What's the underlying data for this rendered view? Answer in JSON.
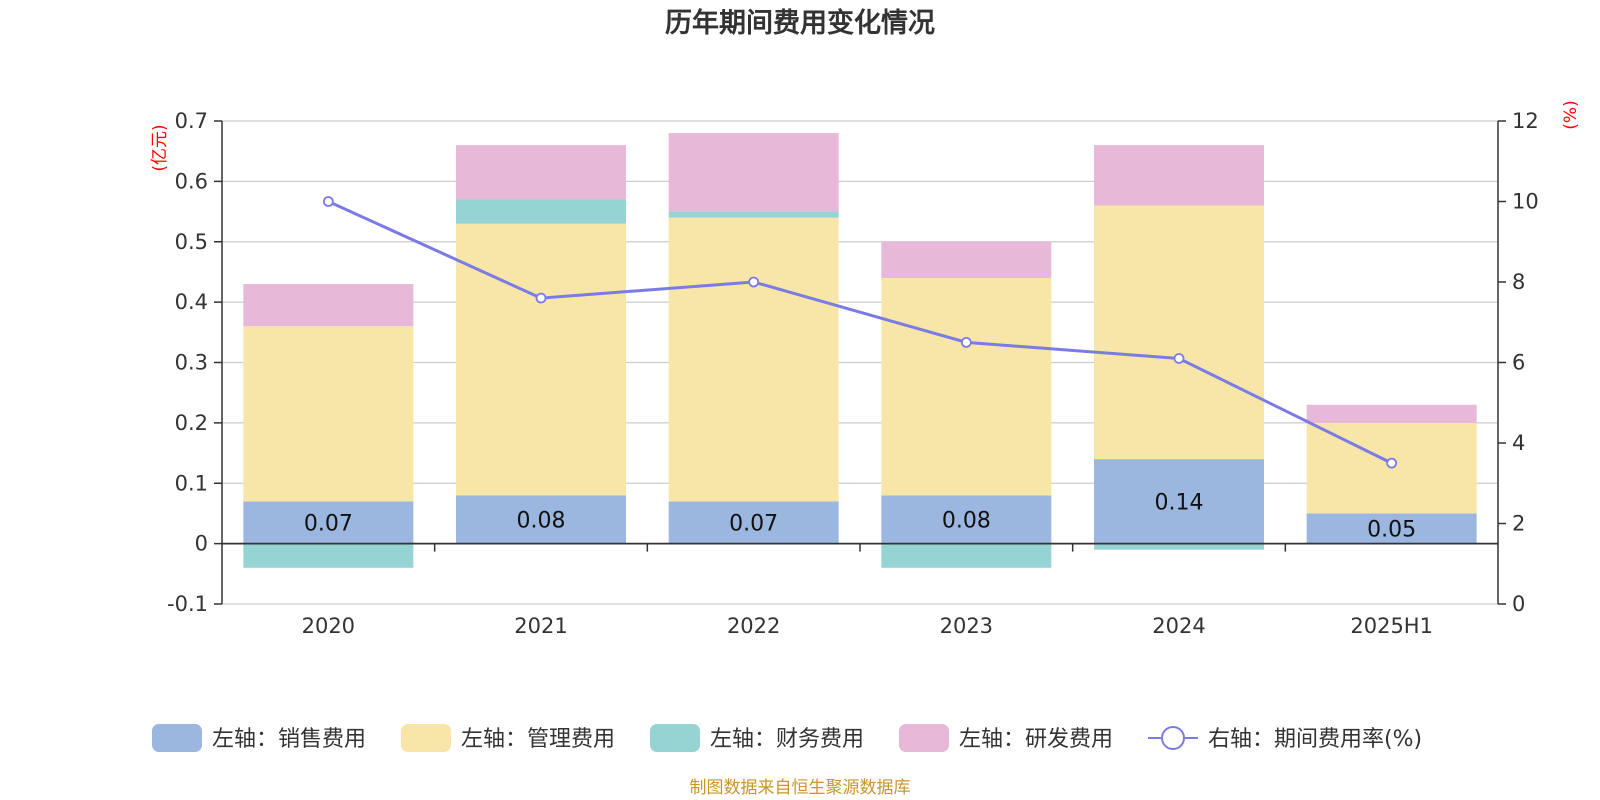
{
  "chart_data": {
    "type": "bar",
    "title": "历年期间费用变化情况",
    "left_unit": "(亿元)",
    "right_unit": "(%)",
    "categories": [
      "2020",
      "2021",
      "2022",
      "2023",
      "2024",
      "2025H1"
    ],
    "left_axis": {
      "ylim": [
        -0.1,
        0.7
      ],
      "ticks": [
        "-0.1",
        "0",
        "0.1",
        "0.2",
        "0.3",
        "0.4",
        "0.5",
        "0.6",
        "0.7"
      ]
    },
    "right_axis": {
      "ylim": [
        0,
        12
      ],
      "ticks": [
        "0",
        "2",
        "4",
        "6",
        "8",
        "10",
        "12"
      ]
    },
    "grid": true,
    "legend_position": "bottom",
    "series": [
      {
        "name": "左轴：销售费用",
        "type": "bar",
        "axis": "left",
        "color": "#9bb7e0",
        "values": [
          0.07,
          0.08,
          0.07,
          0.08,
          0.14,
          0.05
        ],
        "labels": [
          "0.07",
          "0.08",
          "0.07",
          "0.08",
          "0.14",
          "0.05"
        ]
      },
      {
        "name": "左轴：管理费用",
        "type": "bar",
        "axis": "left",
        "color": "#f8e6a8",
        "values": [
          0.29,
          0.45,
          0.47,
          0.36,
          0.42,
          0.15
        ]
      },
      {
        "name": "左轴：财务费用",
        "type": "bar",
        "axis": "left",
        "color": "#96d3d3",
        "values": [
          -0.04,
          0.04,
          0.01,
          -0.04,
          -0.01,
          0.0
        ]
      },
      {
        "name": "左轴：研发费用",
        "type": "bar",
        "axis": "left",
        "color": "#e8b8d8",
        "values": [
          0.07,
          0.09,
          0.13,
          0.06,
          0.1,
          0.03
        ]
      },
      {
        "name": "右轴：期间费用率(%)",
        "type": "line",
        "axis": "right",
        "color": "#7b7be8",
        "values": [
          10.0,
          7.6,
          8.0,
          6.5,
          6.1,
          3.5
        ]
      }
    ]
  },
  "source_note": "制图数据来自恒生聚源数据库"
}
